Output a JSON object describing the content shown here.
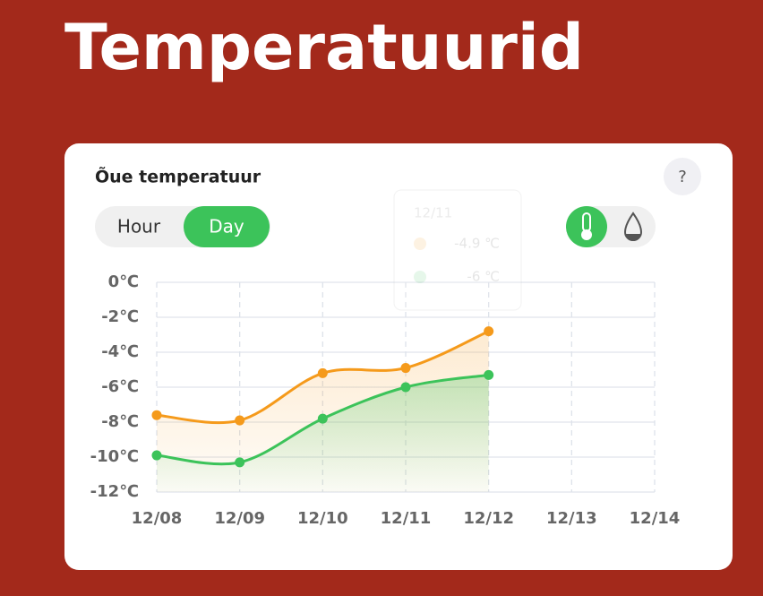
{
  "header": {
    "title": "Temperatuurid"
  },
  "card": {
    "title": "Õue temperatuur",
    "help": "?",
    "range_options": [
      "Hour",
      "Day"
    ],
    "selected_range": 1
  },
  "tooltip": {
    "category": "12/11",
    "labels": [
      "-4.9 ℃",
      "-6 ℃"
    ]
  },
  "chart_data": {
    "type": "line",
    "categories": [
      "12/08",
      "12/09",
      "12/10",
      "12/11",
      "12/12",
      "12/13",
      "12/14"
    ],
    "series": [
      {
        "color": "#f59a1b",
        "values": [
          -7.6,
          -7.9,
          -5.2,
          -4.9,
          -2.8,
          null,
          null
        ]
      },
      {
        "color": "#3cc35a",
        "values": [
          -9.9,
          -10.3,
          -7.8,
          -6,
          -5.3,
          null,
          null
        ]
      }
    ],
    "ylim": [
      -12,
      0
    ],
    "yticks": [
      {
        "value": 0,
        "label": "0℃"
      },
      {
        "value": -2,
        "label": "-2℃"
      },
      {
        "value": -4,
        "label": "-4℃"
      },
      {
        "value": -6,
        "label": "-6℃"
      },
      {
        "value": -8,
        "label": "-8℃"
      },
      {
        "value": -10,
        "label": "-10℃"
      },
      {
        "value": -12,
        "label": "-12℃"
      }
    ],
    "grid": true
  }
}
